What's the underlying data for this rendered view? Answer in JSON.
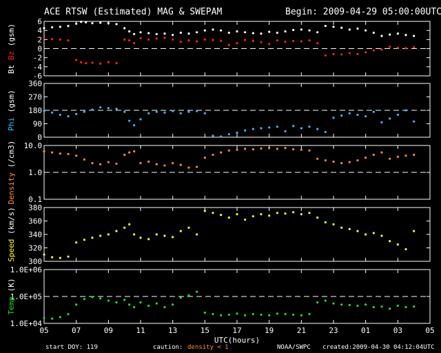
{
  "header": {
    "title": "ACE RTSW (Estimated) MAG & SWEPAM",
    "begin": "Begin: 2009-04-29 05:00:00UTC"
  },
  "footer": {
    "start_doy": "start DOY: 119",
    "caution": "caution:",
    "density_note": "density < 1",
    "source": "NOAA/SWPC",
    "created": "created:2009-04-30 04:12:04UTC"
  },
  "x_axis": {
    "label": "UTC(hours)",
    "ticks": [
      "05",
      "07",
      "09",
      "11",
      "13",
      "15",
      "17",
      "19",
      "21",
      "23",
      "01",
      "03",
      "05"
    ]
  },
  "colors": {
    "bt": "#ffffff",
    "bz": "#ff2020",
    "phi": "#30c0ff",
    "density": "#ff9030",
    "speed": "#ffff20",
    "temp": "#20e020"
  },
  "chart_data": [
    {
      "type": "scatter",
      "ylabel_parts": [
        "Bt",
        "Bz",
        "(gsm)"
      ],
      "ylim": [
        -6,
        6
      ],
      "yticks": [
        "6",
        "4",
        "2",
        "0",
        "-2",
        "-4",
        "-6"
      ],
      "dashed_at": 0,
      "series": [
        {
          "name": "Bt",
          "x": [
            0,
            0.5,
            1,
            1.5,
            2,
            2.3,
            2.6,
            3,
            3.5,
            4,
            4.5,
            5,
            5.3,
            5.6,
            6,
            6.5,
            7,
            7.5,
            8,
            8.5,
            9,
            9.5,
            10,
            10.5,
            11,
            11.5,
            12,
            12.5,
            13,
            13.5,
            14,
            14.5,
            15,
            15.5,
            16,
            16.5,
            17,
            17.5,
            18,
            18.5,
            19,
            19.5,
            20,
            20.5,
            21,
            21.5,
            22,
            22.5,
            23
          ],
          "y": [
            4.5,
            4.7,
            4.8,
            5.0,
            5.5,
            5.9,
            5.8,
            5.6,
            5.7,
            5.6,
            5.4,
            4.5,
            3.8,
            3.2,
            3.6,
            3.4,
            3.2,
            3.3,
            3.0,
            3.5,
            3.3,
            3.6,
            4.0,
            4.2,
            4.0,
            3.5,
            3.8,
            3.6,
            3.4,
            3.3,
            3.7,
            3.5,
            3.8,
            4.1,
            4.2,
            4.0,
            3.6,
            5.0,
            4.8,
            4.6,
            4.2,
            4.4,
            4.0,
            3.5,
            2.8,
            3.1,
            3.3,
            3.0,
            2.8
          ]
        },
        {
          "name": "Bz",
          "x": [
            0,
            0.5,
            1,
            1.5,
            2,
            2.3,
            2.6,
            3,
            3.5,
            4,
            4.5,
            5,
            5.3,
            5.6,
            6,
            6.5,
            7,
            7.5,
            8,
            8.5,
            9,
            9.5,
            10,
            10.5,
            11,
            11.5,
            12,
            12.5,
            13,
            13.5,
            14,
            14.5,
            15,
            15.5,
            16,
            16.5,
            17,
            17.5,
            18,
            18.5,
            19,
            19.5,
            20,
            20.5,
            21,
            21.5,
            22,
            22.5,
            23
          ],
          "y": [
            2.3,
            2.1,
            2.0,
            1.8,
            -2.5,
            -3.0,
            -3.2,
            -3.1,
            -3.3,
            -3.0,
            -3.2,
            2.0,
            1.8,
            1.2,
            2.3,
            2.0,
            2.2,
            2.4,
            2.0,
            1.5,
            1.8,
            1.6,
            2.0,
            1.9,
            1.7,
            0.8,
            1.2,
            1.9,
            1.7,
            1.4,
            1.0,
            1.8,
            1.5,
            1.7,
            1.6,
            1.8,
            1.2,
            -1.5,
            -1.2,
            -1.3,
            -1.0,
            -1.2,
            -0.8,
            -0.4,
            -0.2,
            0.4,
            0.2,
            0.1,
            0.3
          ]
        }
      ]
    },
    {
      "type": "scatter",
      "ylabel_parts": [
        "Phi",
        "(gsm)"
      ],
      "ylim": [
        0,
        360
      ],
      "yticks": [
        "360",
        "270",
        "180",
        "90",
        "0"
      ],
      "dashed_at": 180,
      "series": [
        {
          "name": "Phi",
          "x": [
            0,
            0.5,
            1,
            1.5,
            2,
            2.5,
            3,
            3.5,
            4,
            4.5,
            5,
            5.3,
            5.6,
            6,
            6.5,
            7,
            7.5,
            8,
            8.5,
            9,
            9.5,
            10,
            10.5,
            11,
            11.5,
            12,
            12.5,
            13,
            13.5,
            14,
            14.5,
            15,
            15.5,
            16,
            16.5,
            17,
            17.5,
            18,
            18.5,
            19,
            19.5,
            20,
            20.5,
            21,
            21.5,
            22,
            22.5,
            23
          ],
          "y": [
            175,
            165,
            150,
            140,
            155,
            170,
            185,
            200,
            195,
            190,
            170,
            110,
            80,
            120,
            160,
            170,
            165,
            175,
            160,
            170,
            175,
            160,
            10,
            5,
            20,
            30,
            45,
            55,
            60,
            65,
            70,
            40,
            75,
            60,
            70,
            55,
            35,
            130,
            145,
            160,
            150,
            140,
            170,
            100,
            125,
            150,
            180,
            105
          ]
        }
      ]
    },
    {
      "type": "scatter",
      "log": true,
      "ylabel_parts": [
        "Density",
        "(/cm3)"
      ],
      "ylim": [
        0.1,
        10
      ],
      "yticks": [
        "10.0",
        "1.0",
        "0.1"
      ],
      "dashed_at": 1.0,
      "series": [
        {
          "name": "Density",
          "x": [
            0,
            0.5,
            1,
            1.5,
            2,
            2.5,
            3,
            3.5,
            4,
            4.5,
            5,
            5.3,
            5.6,
            6,
            6.5,
            7,
            7.5,
            8,
            8.5,
            9,
            9.5,
            10,
            10.5,
            11,
            11.5,
            12,
            12.5,
            13,
            13.5,
            14,
            14.5,
            15,
            15.5,
            16,
            16.5,
            17,
            17.5,
            18,
            18.5,
            19,
            19.5,
            20,
            20.5,
            21,
            21.5,
            22,
            22.5,
            23
          ],
          "y": [
            6,
            5.5,
            5,
            4.8,
            4.2,
            3.0,
            2.2,
            2.0,
            2.4,
            2.1,
            4.5,
            5.5,
            6.0,
            2.2,
            2.5,
            2.0,
            1.8,
            2.2,
            1.9,
            1.5,
            1.6,
            3.5,
            4.5,
            5.5,
            6.5,
            7.0,
            7.5,
            7.2,
            7.8,
            8.0,
            7.5,
            8.0,
            7.2,
            7.0,
            6.5,
            3.2,
            2.8,
            2.5,
            2.2,
            2.4,
            2.8,
            3.5,
            4.5,
            5.5,
            3.2,
            3.8,
            4.2,
            4.5
          ]
        }
      ]
    },
    {
      "type": "scatter",
      "ylabel_parts": [
        "Speed",
        "(km/s)"
      ],
      "ylim": [
        300,
        380
      ],
      "yticks": [
        "380",
        "360",
        "340",
        "320",
        "300"
      ],
      "series": [
        {
          "name": "Speed",
          "x": [
            0,
            0.5,
            1,
            1.5,
            2,
            2.5,
            3,
            3.5,
            4,
            4.5,
            5,
            5.3,
            5.6,
            6,
            6.5,
            7,
            7.5,
            8,
            8.5,
            9,
            9.5,
            10,
            10.5,
            11,
            11.5,
            12,
            12.5,
            13,
            13.5,
            14,
            14.5,
            15,
            15.5,
            16,
            16.5,
            17,
            17.5,
            18,
            18.5,
            19,
            19.5,
            20,
            20.5,
            21,
            21.5,
            22,
            22.5,
            23
          ],
          "y": [
            310,
            306,
            305,
            307,
            328,
            332,
            335,
            338,
            340,
            345,
            350,
            355,
            340,
            335,
            333,
            340,
            338,
            336,
            345,
            350,
            340,
            375,
            372,
            369,
            365,
            370,
            362,
            367,
            370,
            368,
            372,
            371,
            373,
            370,
            372,
            365,
            358,
            355,
            350,
            348,
            345,
            340,
            342,
            338,
            330,
            325,
            318,
            345
          ]
        }
      ]
    },
    {
      "type": "scatter",
      "log": true,
      "ylabel_parts": [
        "Temp",
        "(K)"
      ],
      "ylim": [
        10000,
        1000000
      ],
      "yticks": [
        "1.0E+06",
        "1.0E+05",
        "1.0E+04"
      ],
      "dashed_at": 100000,
      "series": [
        {
          "name": "Temp",
          "x": [
            0,
            0.5,
            1,
            1.5,
            2,
            2.5,
            3,
            3.5,
            4,
            4.5,
            5,
            5.3,
            5.6,
            6,
            6.5,
            7,
            7.5,
            8,
            8.5,
            9,
            9.5,
            10,
            10.5,
            11,
            11.5,
            12,
            12.5,
            13,
            13.5,
            14,
            14.5,
            15,
            15.5,
            16,
            16.5,
            17,
            17.5,
            18,
            18.5,
            19,
            19.5,
            20,
            20.5,
            21,
            21.5,
            22,
            22.5,
            23
          ],
          "y": [
            16000,
            15000,
            17000,
            22000,
            50000,
            80000,
            95000,
            85000,
            70000,
            60000,
            75000,
            50000,
            40000,
            60000,
            45000,
            55000,
            40000,
            50000,
            90000,
            110000,
            150000,
            25000,
            22000,
            20000,
            21000,
            23000,
            20000,
            22000,
            21000,
            20000,
            23000,
            22000,
            21000,
            20000,
            22000,
            60000,
            70000,
            55000,
            50000,
            48000,
            45000,
            50000,
            40000,
            42000,
            35000,
            45000,
            40000,
            42000
          ]
        }
      ]
    }
  ]
}
